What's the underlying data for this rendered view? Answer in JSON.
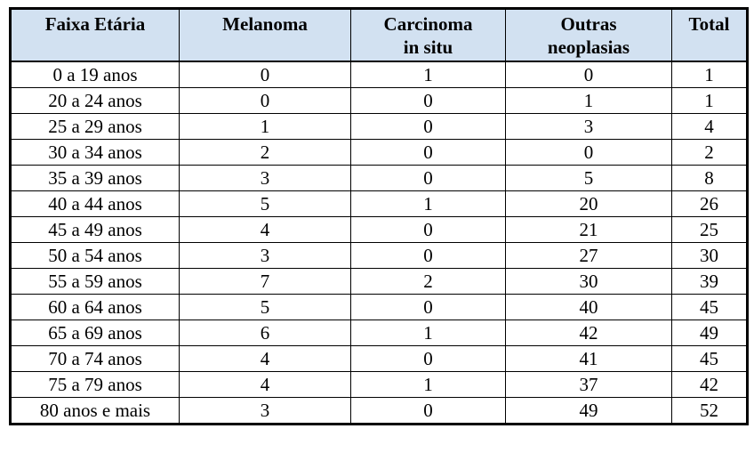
{
  "colors": {
    "header_bg": "#d2e1f1",
    "border_color": "#000000",
    "text_color": "#000000"
  },
  "table": {
    "headers": [
      "Faixa Etária",
      "Melanoma",
      "Carcinoma\nin situ",
      "Outras\nneoplasias",
      "Total"
    ],
    "rows": [
      [
        "0 a 19 anos",
        "0",
        "1",
        "0",
        "1"
      ],
      [
        "20 a 24 anos",
        "0",
        "0",
        "1",
        "1"
      ],
      [
        "25 a 29 anos",
        "1",
        "0",
        "3",
        "4"
      ],
      [
        "30 a 34 anos",
        "2",
        "0",
        "0",
        "2"
      ],
      [
        "35 a 39 anos",
        "3",
        "0",
        "5",
        "8"
      ],
      [
        "40 a 44 anos",
        "5",
        "1",
        "20",
        "26"
      ],
      [
        "45 a 49 anos",
        "4",
        "0",
        "21",
        "25"
      ],
      [
        "50 a 54 anos",
        "3",
        "0",
        "27",
        "30"
      ],
      [
        "55 a 59 anos",
        "7",
        "2",
        "30",
        "39"
      ],
      [
        "60 a 64 anos",
        "5",
        "0",
        "40",
        "45"
      ],
      [
        "65 a 69 anos",
        "6",
        "1",
        "42",
        "49"
      ],
      [
        "70 a 74 anos",
        "4",
        "0",
        "41",
        "45"
      ],
      [
        "75 a 79 anos",
        "4",
        "1",
        "37",
        "42"
      ],
      [
        "80 anos e mais",
        "3",
        "0",
        "49",
        "52"
      ]
    ]
  },
  "chart_data": {
    "type": "table",
    "title": "",
    "columns": [
      "Faixa Etária",
      "Melanoma",
      "Carcinoma in situ",
      "Outras neoplasias",
      "Total"
    ],
    "categories": [
      "0 a 19 anos",
      "20 a 24 anos",
      "25 a 29 anos",
      "30 a 34 anos",
      "35 a 39 anos",
      "40 a 44 anos",
      "45 a 49 anos",
      "50 a 54 anos",
      "55 a 59 anos",
      "60 a 64 anos",
      "65 a 69 anos",
      "70 a 74 anos",
      "75 a 79 anos",
      "80 anos e mais"
    ],
    "series": [
      {
        "name": "Melanoma",
        "values": [
          0,
          0,
          1,
          2,
          3,
          5,
          4,
          3,
          7,
          5,
          6,
          4,
          4,
          3
        ]
      },
      {
        "name": "Carcinoma in situ",
        "values": [
          1,
          0,
          0,
          0,
          0,
          1,
          0,
          0,
          2,
          0,
          1,
          0,
          1,
          0
        ]
      },
      {
        "name": "Outras neoplasias",
        "values": [
          0,
          1,
          3,
          0,
          5,
          20,
          21,
          27,
          30,
          40,
          42,
          41,
          37,
          49
        ]
      },
      {
        "name": "Total",
        "values": [
          1,
          1,
          4,
          2,
          8,
          26,
          25,
          30,
          39,
          45,
          49,
          45,
          42,
          52
        ]
      }
    ]
  }
}
